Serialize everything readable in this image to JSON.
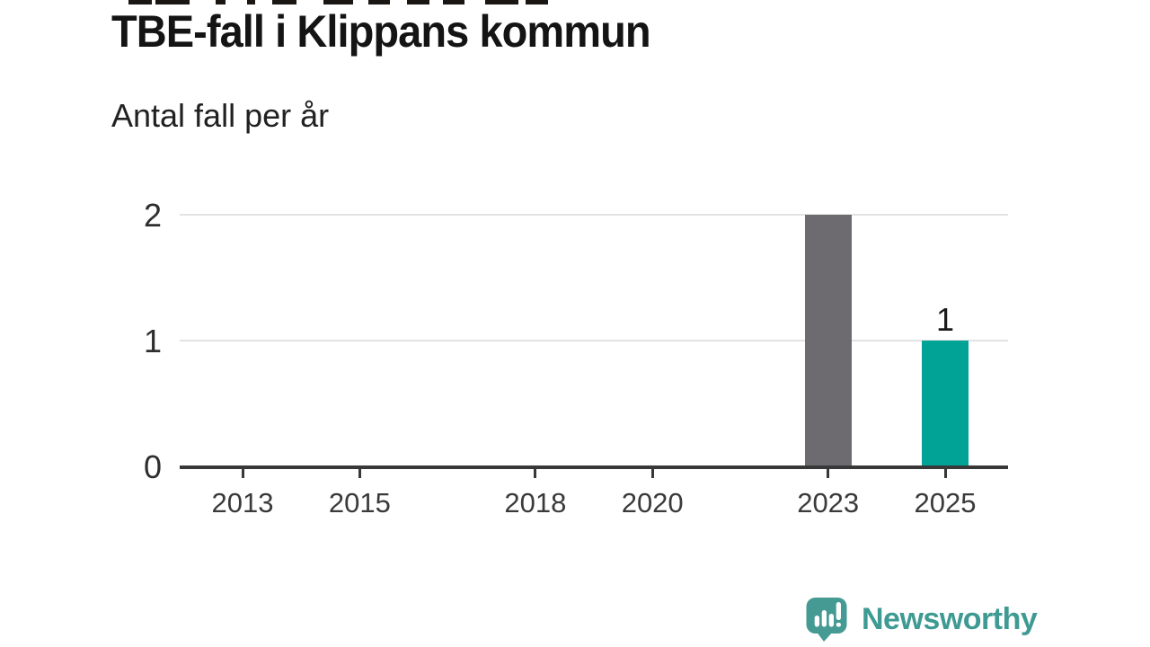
{
  "header": {
    "title": "TBE-fall i Klippans kommun",
    "subtitle": "Antal fall per år"
  },
  "chart_data": {
    "type": "bar",
    "title": "TBE-fall i Klippans kommun",
    "subtitle": "Antal fall per år",
    "categories": [
      2023,
      2025
    ],
    "values": [
      2,
      1
    ],
    "bars": [
      {
        "year": 2023,
        "value": 2,
        "color": "#6e6b70",
        "value_label": ""
      },
      {
        "year": 2025,
        "value": 1,
        "color": "#00a396",
        "value_label": "1"
      }
    ],
    "x_ticks": [
      2013,
      2015,
      2018,
      2020,
      2023,
      2025
    ],
    "y_ticks": [
      0,
      1,
      2
    ],
    "ylim": [
      0,
      2
    ],
    "xlabel": "",
    "ylabel": "",
    "grid": "horizontal-only",
    "legend": "none",
    "colors": {
      "bar_gray": "#6e6b70",
      "bar_teal": "#00a396",
      "gridline": "#e3e3e3",
      "axis": "#383838"
    }
  },
  "footer": {
    "brand": "Newsworthy",
    "logo_icon": "newsworthy-speech-bubble-bar-chart-icon",
    "brand_color": "#3e9a92"
  }
}
